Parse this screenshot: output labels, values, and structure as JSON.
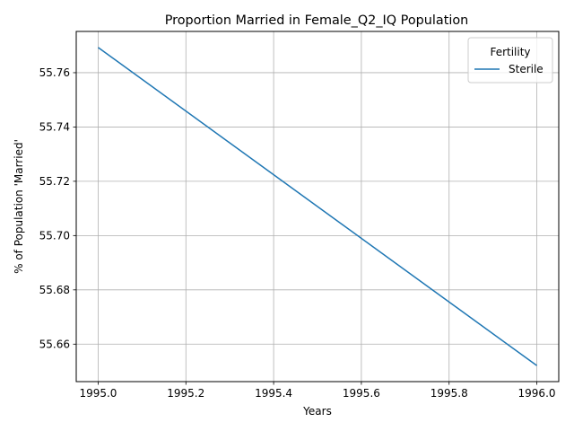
{
  "chart_data": {
    "type": "line",
    "title": "Proportion Married in Female_Q2_IQ Population",
    "xlabel": "Years",
    "ylabel": "% of Population 'Married'",
    "xlim": [
      1994.95,
      1996.05
    ],
    "ylim": [
      55.6462,
      55.7752
    ],
    "xticks": [
      1995.0,
      1995.2,
      1995.4,
      1995.6,
      1995.8,
      1996.0
    ],
    "xtick_labels": [
      "1995.0",
      "1995.2",
      "1995.4",
      "1995.6",
      "1995.8",
      "1996.0"
    ],
    "yticks": [
      55.66,
      55.68,
      55.7,
      55.72,
      55.74,
      55.76
    ],
    "ytick_labels": [
      "55.66",
      "55.68",
      "55.70",
      "55.72",
      "55.74",
      "55.76"
    ],
    "grid": true,
    "legend": {
      "title": "Fertility",
      "placement": "top-right"
    },
    "series": [
      {
        "name": "Sterile",
        "color": "#1f77b4",
        "x": [
          1995.0,
          1996.0
        ],
        "y": [
          55.7693,
          55.6521
        ]
      }
    ]
  }
}
